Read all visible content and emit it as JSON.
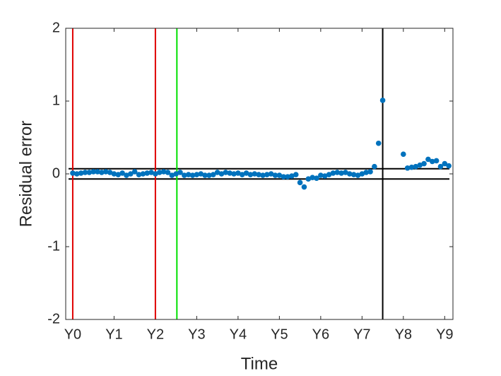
{
  "chart_data": {
    "type": "scatter",
    "xlabel": "Time",
    "ylabel": "Residual error",
    "x": [
      0,
      0.1,
      0.2,
      0.3,
      0.4,
      0.5,
      0.6,
      0.7,
      0.8,
      0.9,
      1.0,
      1.1,
      1.2,
      1.3,
      1.4,
      1.5,
      1.6,
      1.7,
      1.8,
      1.9,
      2.0,
      2.1,
      2.2,
      2.3,
      2.4,
      2.5,
      2.6,
      2.7,
      2.8,
      2.9,
      3.0,
      3.1,
      3.2,
      3.3,
      3.4,
      3.5,
      3.6,
      3.7,
      3.8,
      3.9,
      4.0,
      4.1,
      4.2,
      4.3,
      4.4,
      4.5,
      4.6,
      4.7,
      4.8,
      4.9,
      5.0,
      5.1,
      5.2,
      5.3,
      5.4,
      5.5,
      5.6,
      5.7,
      5.8,
      5.9,
      6.0,
      6.1,
      6.2,
      6.3,
      6.4,
      6.5,
      6.6,
      6.7,
      6.8,
      6.9,
      7.0,
      7.1,
      7.2,
      7.3,
      7.4,
      7.5,
      8.0,
      8.1,
      8.2,
      8.3,
      8.4,
      8.5,
      8.6,
      8.7,
      8.8,
      8.9,
      9.0,
      9.1
    ],
    "series": [
      {
        "color": "#0072bd",
        "values": [
          0.01,
          0.0,
          0.01,
          0.02,
          0.02,
          0.03,
          0.03,
          0.02,
          0.03,
          0.02,
          0.0,
          -0.01,
          0.01,
          -0.02,
          0.0,
          0.03,
          -0.01,
          0.0,
          0.01,
          0.02,
          0.0,
          0.02,
          0.03,
          0.02,
          -0.02,
          0.0,
          0.02,
          -0.02,
          -0.01,
          -0.02,
          -0.01,
          0.0,
          -0.02,
          -0.02,
          -0.01,
          0.02,
          0.0,
          0.02,
          0.01,
          0.0,
          0.01,
          -0.01,
          0.01,
          -0.01,
          0.0,
          -0.01,
          -0.02,
          -0.01,
          0.0,
          -0.02,
          -0.02,
          -0.04,
          -0.04,
          -0.03,
          -0.01,
          -0.12,
          -0.18,
          -0.07,
          -0.05,
          -0.06,
          -0.02,
          -0.03,
          -0.01,
          0.01,
          0.02,
          0.01,
          0.02,
          0.0,
          -0.01,
          -0.02,
          0.0,
          0.02,
          0.03,
          0.1,
          0.42,
          1.01,
          0.27,
          0.08,
          0.09,
          0.1,
          0.12,
          0.14,
          0.2,
          0.17,
          0.18,
          0.1,
          0.14,
          0.11
        ]
      }
    ],
    "xlim": [
      -0.17,
      9.2
    ],
    "ylim": [
      -2,
      2
    ],
    "xticks": [
      {
        "value": 0,
        "label": "Y0"
      },
      {
        "value": 1,
        "label": "Y1"
      },
      {
        "value": 2,
        "label": "Y2"
      },
      {
        "value": 3,
        "label": "Y3"
      },
      {
        "value": 4,
        "label": "Y4"
      },
      {
        "value": 5,
        "label": "Y5"
      },
      {
        "value": 6,
        "label": "Y6"
      },
      {
        "value": 7,
        "label": "Y7"
      },
      {
        "value": 8,
        "label": "Y8"
      },
      {
        "value": 9,
        "label": "Y9"
      }
    ],
    "yticks": [
      -2,
      -1,
      0,
      1,
      2
    ],
    "vlines": [
      {
        "value": 0,
        "color": "#e00000"
      },
      {
        "value": 2,
        "color": "#e00000"
      },
      {
        "value": 2.52,
        "color": "#00e000"
      },
      {
        "value": 7.5,
        "color": "#000000"
      }
    ],
    "hlines": [
      {
        "value": 0.07,
        "color": "#000000"
      },
      {
        "value": -0.07,
        "color": "#000000"
      }
    ],
    "grid": false
  }
}
